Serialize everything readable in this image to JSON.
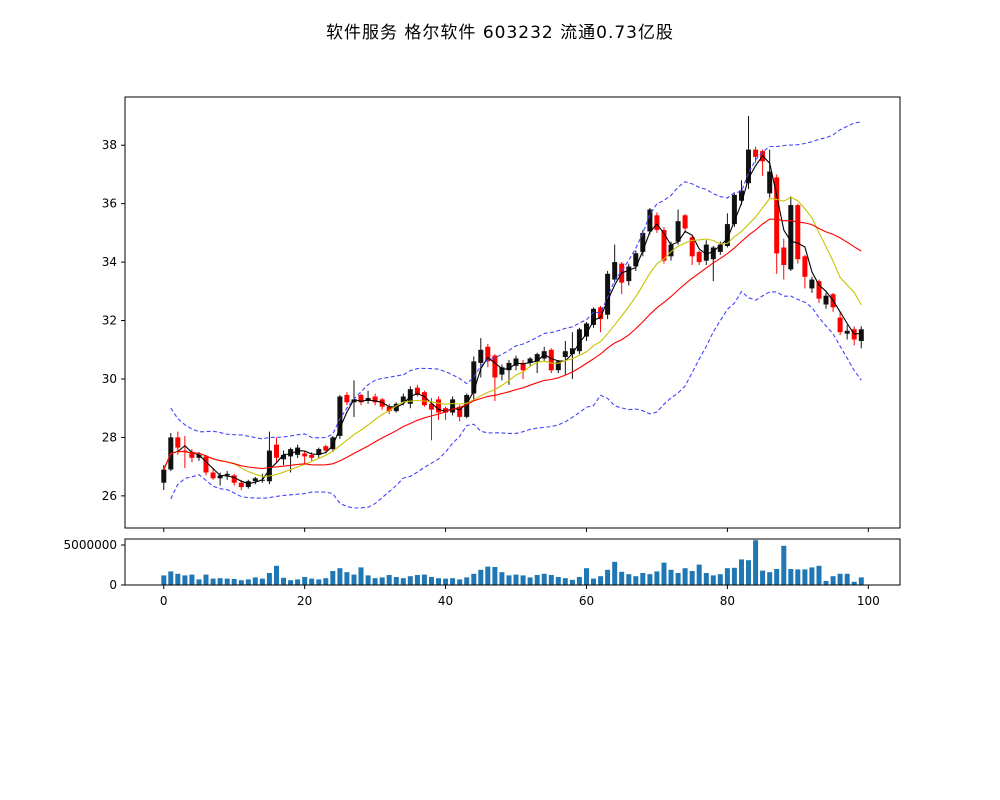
{
  "title": "软件服务 格尔软件 603232 流通0.73亿股",
  "chart_data": {
    "type": "candlestick",
    "title": "软件服务 格尔软件 603232 流通0.73亿股",
    "panels": [
      "price",
      "volume"
    ],
    "grid": false,
    "legend": "none",
    "x_ticks": [
      0,
      20,
      40,
      60,
      80,
      100
    ],
    "price_ticks": [
      26,
      28,
      30,
      32,
      34,
      36,
      38
    ],
    "volume_ticks": [
      0,
      5000000
    ],
    "xlim": [
      -5.5,
      104.5
    ],
    "price_ylim": [
      24.9,
      39.65
    ],
    "volume_ylim": [
      0,
      5750000
    ],
    "up_color": "#111111",
    "down_color": "#ff0000",
    "volume_color": "#1f77b4",
    "axis_color": "#000000",
    "overlays": [
      {
        "name": "ma-fast",
        "type": "sma",
        "window": 3,
        "color": "#000000",
        "dash": ""
      },
      {
        "name": "ma-mid",
        "type": "sma",
        "window": 10,
        "color": "#c8c400",
        "dash": ""
      },
      {
        "name": "ma-slow",
        "type": "sma",
        "window": 20,
        "color": "#ff0000",
        "dash": ""
      },
      {
        "name": "bollinger-upper",
        "type": "boll",
        "window": 20,
        "k": 2,
        "color": "#4444ff",
        "dash": "4 2.5"
      },
      {
        "name": "bollinger-lower",
        "type": "boll",
        "window": 20,
        "k": -2,
        "color": "#4444ff",
        "dash": "4 2.5"
      }
    ],
    "candles": {
      "open": [
        26.45,
        26.9,
        28.0,
        27.55,
        27.5,
        27.3,
        27.35,
        26.8,
        26.6,
        26.7,
        26.7,
        26.45,
        26.3,
        26.5,
        26.55,
        26.5,
        27.75,
        27.25,
        27.35,
        27.4,
        27.45,
        27.4,
        27.4,
        27.7,
        27.6,
        28.05,
        29.45,
        29.2,
        29.45,
        29.25,
        29.4,
        29.3,
        29.05,
        28.9,
        29.2,
        29.15,
        29.7,
        29.55,
        29.15,
        29.3,
        29.0,
        28.85,
        29.05,
        28.7,
        29.5,
        30.55,
        31.1,
        30.8,
        30.15,
        30.3,
        30.45,
        30.55,
        30.55,
        30.6,
        30.7,
        31.0,
        30.3,
        30.75,
        30.85,
        30.95,
        31.45,
        31.85,
        32.45,
        32.2,
        33.4,
        33.95,
        33.35,
        33.85,
        34.35,
        35.05,
        35.6,
        35.1,
        34.2,
        34.7,
        35.6,
        34.85,
        34.35,
        34.05,
        34.1,
        34.35,
        34.55,
        35.3,
        36.1,
        36.7,
        37.85,
        37.8,
        36.35,
        36.9,
        34.5,
        33.75,
        35.95,
        34.2,
        33.1,
        33.35,
        32.55,
        32.9,
        32.1,
        31.55,
        31.7,
        31.3
      ],
      "high": [
        27.05,
        28.15,
        28.2,
        28.05,
        27.6,
        27.5,
        27.4,
        26.95,
        26.8,
        26.85,
        26.75,
        26.55,
        26.55,
        26.65,
        26.75,
        28.2,
        28.0,
        27.55,
        27.65,
        27.75,
        27.55,
        27.5,
        27.65,
        27.75,
        28.05,
        29.45,
        29.55,
        29.95,
        29.5,
        29.6,
        29.5,
        29.35,
        29.15,
        29.2,
        29.5,
        29.75,
        29.8,
        29.6,
        29.35,
        29.4,
        29.05,
        29.4,
        29.1,
        29.5,
        30.77,
        31.4,
        31.2,
        30.85,
        30.5,
        30.65,
        30.8,
        30.65,
        30.75,
        30.9,
        31.1,
        31.05,
        30.65,
        31.3,
        31.6,
        31.75,
        31.95,
        32.45,
        32.5,
        33.7,
        34.6,
        34.0,
        33.95,
        34.4,
        35.1,
        35.85,
        35.7,
        35.2,
        34.7,
        35.8,
        35.65,
        34.9,
        34.4,
        34.75,
        34.55,
        34.7,
        35.67,
        36.35,
        36.8,
        39.0,
        37.95,
        37.85,
        37.85,
        37.0,
        34.8,
        36.25,
        36.0,
        34.25,
        33.5,
        33.4,
        32.95,
        32.95,
        32.3,
        31.85,
        31.8,
        31.8
      ],
      "low": [
        26.2,
        26.85,
        27.4,
        26.95,
        27.15,
        27.2,
        26.7,
        26.55,
        26.35,
        26.55,
        26.35,
        26.2,
        26.25,
        26.4,
        26.45,
        26.4,
        27.15,
        27.05,
        26.8,
        27.3,
        27.1,
        27.2,
        27.3,
        27.45,
        27.5,
        27.95,
        29.1,
        28.7,
        29.1,
        29.15,
        29.1,
        28.95,
        28.8,
        28.85,
        29.1,
        29.0,
        29.4,
        29.05,
        27.9,
        28.6,
        28.6,
        28.75,
        28.55,
        28.65,
        29.25,
        30.05,
        30.4,
        29.25,
        29.95,
        29.8,
        30.3,
        30.0,
        30.45,
        30.2,
        30.6,
        30.2,
        30.2,
        30.15,
        30.0,
        30.85,
        31.3,
        31.75,
        31.6,
        32.05,
        33.3,
        32.9,
        33.2,
        33.7,
        34.2,
        34.95,
        35.0,
        33.95,
        34.05,
        34.6,
        35.0,
        33.9,
        33.9,
        33.9,
        33.35,
        34.25,
        34.5,
        35.2,
        35.95,
        36.5,
        37.4,
        36.95,
        36.2,
        33.6,
        33.4,
        33.7,
        33.95,
        33.1,
        32.95,
        32.6,
        32.4,
        32.3,
        31.5,
        31.35,
        31.15,
        31.05
      ],
      "close": [
        26.9,
        28.0,
        27.65,
        27.5,
        27.3,
        27.4,
        26.8,
        26.6,
        26.7,
        26.75,
        26.45,
        26.3,
        26.5,
        26.6,
        26.55,
        27.55,
        27.3,
        27.4,
        27.6,
        27.65,
        27.35,
        27.3,
        27.6,
        27.55,
        28.0,
        29.4,
        29.2,
        29.3,
        29.2,
        29.35,
        29.2,
        29.05,
        28.9,
        29.15,
        29.4,
        29.65,
        29.45,
        29.1,
        28.95,
        28.85,
        28.85,
        29.3,
        28.7,
        29.45,
        30.6,
        31.0,
        30.6,
        30.05,
        30.4,
        30.55,
        30.7,
        30.3,
        30.7,
        30.85,
        30.95,
        30.3,
        30.6,
        30.95,
        31.05,
        31.7,
        31.9,
        32.4,
        32.05,
        33.6,
        34.0,
        33.3,
        33.85,
        34.3,
        35.0,
        35.8,
        35.1,
        34.05,
        34.6,
        35.4,
        35.15,
        34.2,
        34.0,
        34.6,
        34.5,
        34.6,
        35.3,
        36.3,
        36.45,
        37.85,
        37.6,
        37.45,
        37.1,
        34.3,
        33.9,
        35.95,
        34.1,
        33.5,
        33.4,
        32.75,
        32.85,
        32.45,
        31.6,
        31.65,
        31.35,
        31.7
      ],
      "volume": [
        1200000,
        1700000,
        1400000,
        1200000,
        1300000,
        700000,
        1300000,
        800000,
        850000,
        800000,
        750000,
        600000,
        700000,
        950000,
        800000,
        1500000,
        2400000,
        900000,
        600000,
        700000,
        1000000,
        800000,
        700000,
        850000,
        1750000,
        2100000,
        1600000,
        1300000,
        2200000,
        1200000,
        850000,
        950000,
        1250000,
        1000000,
        850000,
        1100000,
        1250000,
        1300000,
        1000000,
        850000,
        800000,
        850000,
        700000,
        950000,
        1400000,
        1900000,
        2300000,
        2250000,
        1600000,
        1200000,
        1300000,
        1200000,
        950000,
        1250000,
        1400000,
        1250000,
        1000000,
        850000,
        650000,
        1000000,
        2100000,
        800000,
        1100000,
        1900000,
        2900000,
        1650000,
        1350000,
        1100000,
        1500000,
        1350000,
        1700000,
        2800000,
        1900000,
        1500000,
        2100000,
        1750000,
        2550000,
        1500000,
        1200000,
        1350000,
        2100000,
        2150000,
        3200000,
        3100000,
        5600000,
        1800000,
        1600000,
        2000000,
        4900000,
        2000000,
        1950000,
        1950000,
        2200000,
        2400000,
        500000,
        1100000,
        1400000,
        1400000,
        400000,
        950000
      ]
    }
  }
}
